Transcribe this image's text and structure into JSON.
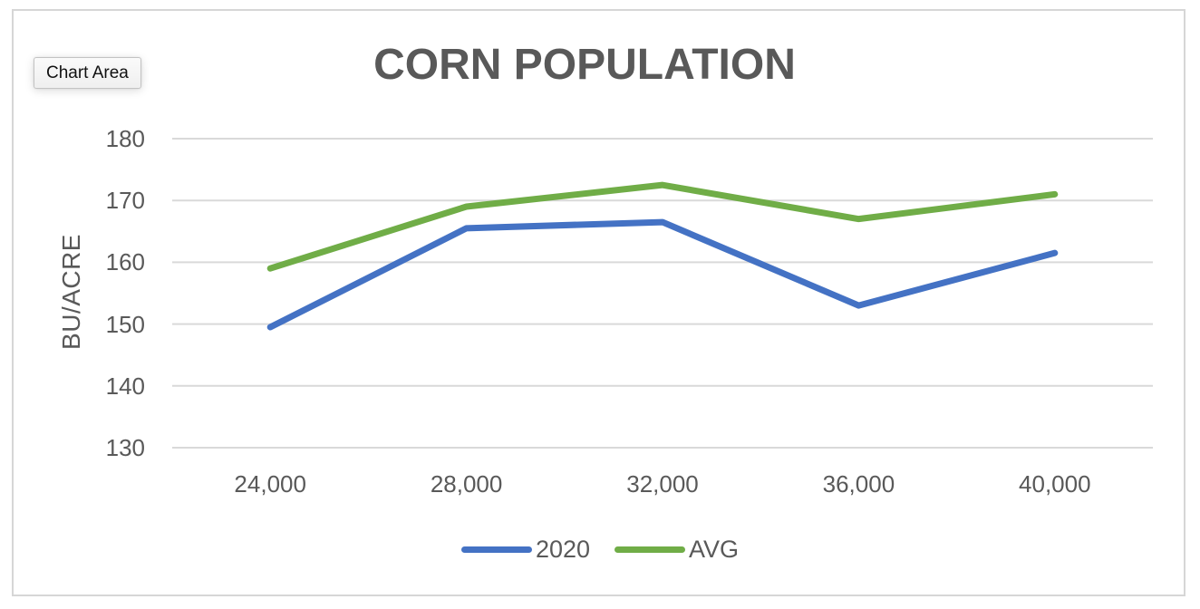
{
  "tooltip": {
    "label": "Chart Area"
  },
  "chart_data": {
    "type": "line",
    "title": "CORN POPULATION",
    "xlabel": "",
    "ylabel": "BU/ACRE",
    "categories": [
      "24,000",
      "28,000",
      "32,000",
      "36,000",
      "40,000"
    ],
    "series": [
      {
        "name": "2020",
        "color": "#4472C4",
        "values": [
          149.5,
          165.5,
          166.5,
          153,
          161.5
        ]
      },
      {
        "name": "AVG",
        "color": "#70AD47",
        "values": [
          159,
          169,
          172.5,
          167,
          171
        ]
      }
    ],
    "ylim": [
      130,
      180
    ],
    "yticks": [
      130,
      140,
      150,
      160,
      170,
      180
    ],
    "grid": true,
    "legend_position": "bottom",
    "text_color": "#595959",
    "gridline_color": "#D9D9D9",
    "border_color": "#D6D6D6"
  }
}
